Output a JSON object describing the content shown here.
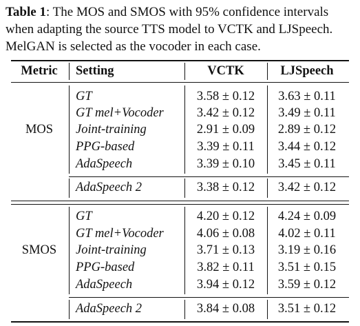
{
  "caption": {
    "label": "Table 1",
    "lines": [
      ": The MOS and SMOS with 95% confidence intervals",
      "when adapting the source TTS model to VCTK and LJSpeech.",
      "MelGAN is selected as the vocoder in each case."
    ]
  },
  "table": {
    "header": [
      "Metric",
      "Setting",
      "VCTK",
      "LJSpeech"
    ],
    "groups": [
      {
        "metric": "MOS",
        "rows": [
          [
            "GT",
            "3.58 ± 0.12",
            "3.63 ± 0.11"
          ],
          [
            "GT mel+Vocoder",
            "3.42 ± 0.12",
            "3.49 ± 0.11"
          ],
          [
            "Joint-training",
            "2.91 ± 0.09",
            "2.89 ± 0.12"
          ],
          [
            "PPG-based",
            "3.39 ± 0.11",
            "3.44 ± 0.12"
          ],
          [
            "AdaSpeech",
            "3.39 ± 0.10",
            "3.45 ± 0.11"
          ]
        ],
        "extra": [
          "AdaSpeech 2",
          "3.38 ± 0.12",
          "3.42 ± 0.12"
        ]
      },
      {
        "metric": "SMOS",
        "rows": [
          [
            "GT",
            "4.20 ± 0.12",
            "4.24 ± 0.09"
          ],
          [
            "GT mel+Vocoder",
            "4.06 ± 0.08",
            "4.02 ± 0.11"
          ],
          [
            "Joint-training",
            "3.71 ± 0.13",
            "3.19 ± 0.16"
          ],
          [
            "PPG-based",
            "3.82 ± 0.11",
            "3.51 ± 0.15"
          ],
          [
            "AdaSpeech",
            "3.94 ± 0.12",
            "3.59 ± 0.12"
          ]
        ],
        "extra": [
          "AdaSpeech 2",
          "3.84 ± 0.08",
          "3.51 ± 0.12"
        ]
      }
    ]
  }
}
